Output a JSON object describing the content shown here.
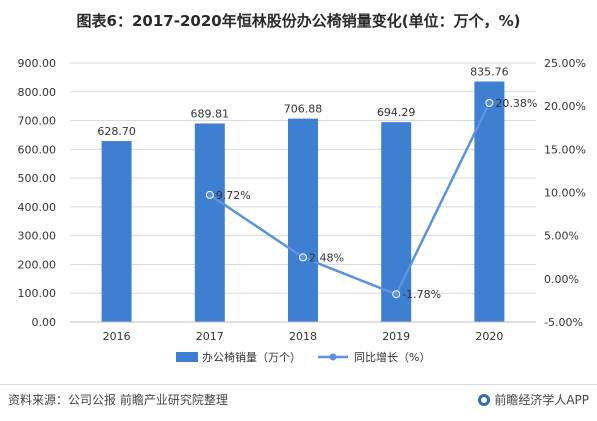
{
  "title": "图表6：2017-2020年恒林股份办公椅销量变化(单位：万个，%)",
  "source": "资料来源：公司公报 前瞻产业研究院整理",
  "brand": "前瞻经济学人APP",
  "colors": {
    "bar": "#3f7fd1",
    "line": "#5b93df",
    "grid": "#d9d9d9",
    "text": "#333333"
  },
  "chart_data": {
    "type": "bar",
    "categories": [
      "2016",
      "2017",
      "2018",
      "2019",
      "2020"
    ],
    "series": [
      {
        "name": "办公椅销量（万个）",
        "type": "bar",
        "axis": "left",
        "values": [
          628.7,
          689.81,
          706.88,
          694.29,
          835.76
        ],
        "labels": [
          "628.70",
          "689.81",
          "706.88",
          "694.29",
          "835.76"
        ]
      },
      {
        "name": "同比增长（%）",
        "type": "line",
        "axis": "right",
        "values": [
          null,
          9.72,
          2.48,
          -1.78,
          20.38
        ],
        "labels": [
          "",
          "9.72%",
          "2.48%",
          "-1.78%",
          "20.38%"
        ]
      }
    ],
    "y_left": {
      "min": 0,
      "max": 900,
      "step": 100,
      "ticks": [
        "0.00",
        "100.00",
        "200.00",
        "300.00",
        "400.00",
        "500.00",
        "600.00",
        "700.00",
        "800.00",
        "900.00"
      ]
    },
    "y_right": {
      "min": -5,
      "max": 25,
      "step": 5,
      "ticks": [
        "-5.00%",
        "0.00%",
        "5.00%",
        "10.00%",
        "15.00%",
        "20.00%",
        "25.00%"
      ]
    },
    "grid": true,
    "legend_position": "bottom"
  }
}
